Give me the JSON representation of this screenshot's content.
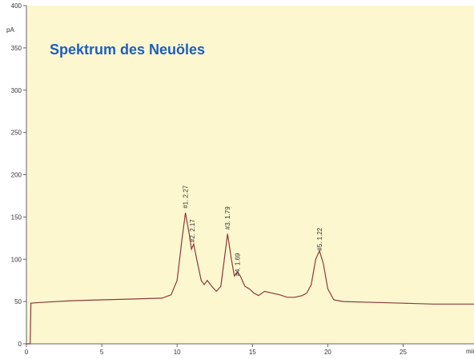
{
  "chart_data": {
    "type": "line",
    "title": "Spektrum des Neuöles",
    "y_label": "pA",
    "x_label": "min",
    "x": [
      0,
      0.25,
      0.3,
      1,
      3,
      5,
      7,
      9,
      9.6,
      10,
      10.3,
      10.55,
      10.8,
      10.95,
      11.1,
      11.3,
      11.6,
      11.8,
      12,
      12.3,
      12.6,
      12.9,
      13.1,
      13.35,
      13.6,
      13.8,
      14.0,
      14.2,
      14.5,
      14.8,
      15.1,
      15.4,
      15.8,
      16.3,
      16.8,
      17.3,
      17.8,
      18.3,
      18.6,
      18.9,
      19.2,
      19.45,
      19.7,
      20,
      20.4,
      21,
      23,
      25,
      27,
      29.7
    ],
    "series": [
      {
        "color": "#8b3a3a",
        "values": [
          0,
          0,
          48,
          49,
          51,
          52,
          53,
          54,
          58,
          75,
          120,
          155,
          130,
          112,
          118,
          100,
          75,
          70,
          75,
          68,
          62,
          68,
          95,
          130,
          100,
          80,
          85,
          80,
          68,
          65,
          60,
          57,
          62,
          60,
          58,
          55,
          55,
          57,
          60,
          70,
          100,
          110,
          95,
          65,
          52,
          50,
          49,
          48,
          47,
          47
        ]
      }
    ],
    "annotations": [
      {
        "text": "#1. 2.27",
        "x": 10.55,
        "y": 160
      },
      {
        "text": "#2. 2.17",
        "x": 11.0,
        "y": 120
      },
      {
        "text": "#3. 1.79",
        "x": 13.35,
        "y": 135
      },
      {
        "text": "#4. 1.69",
        "x": 14.0,
        "y": 80
      },
      {
        "text": "#5. 1.22",
        "x": 19.45,
        "y": 110
      }
    ],
    "xlim": [
      0,
      29.7
    ],
    "ylim": [
      0,
      400
    ],
    "xticks": [
      0,
      5,
      10,
      15,
      20,
      25
    ],
    "yticks": [
      0,
      50,
      100,
      150,
      200,
      250,
      300,
      350,
      400
    ],
    "background": "#fcf7cf"
  }
}
